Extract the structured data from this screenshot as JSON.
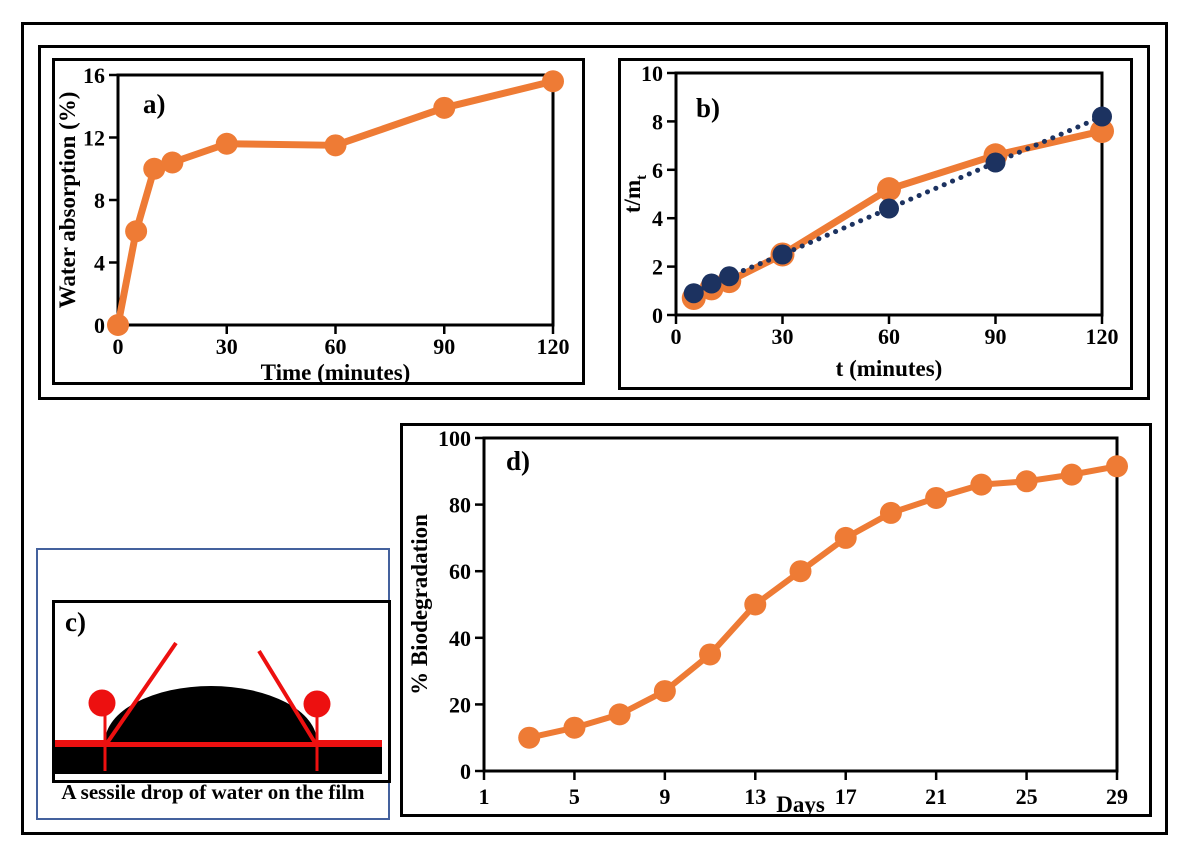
{
  "colors": {
    "orange": "#EE7B35",
    "navy": "#1C3260",
    "red": "#ED1010",
    "black": "#000000",
    "panel_c_border": "#44619D",
    "background": "#FFFFFF"
  },
  "panel_c": {
    "label": "c)",
    "caption": "A sessile drop of water on the film"
  },
  "chart_data": [
    {
      "id": "a",
      "type": "line",
      "panel_label": "a)",
      "title": "",
      "xlabel": "Time (minutes)",
      "ylabel": "Water absorption (%)",
      "xlim": [
        0,
        120
      ],
      "ylim": [
        0,
        16
      ],
      "xticks": [
        0,
        30,
        60,
        90,
        120
      ],
      "yticks": [
        0,
        4,
        8,
        12,
        16
      ],
      "grid": false,
      "legend": "none",
      "x": [
        0,
        5,
        10,
        15,
        30,
        60,
        90,
        120
      ],
      "series": [
        {
          "name": "water-absorption",
          "color": "orange",
          "line": "solid",
          "marker": "circle",
          "values": [
            0,
            6,
            10,
            10.4,
            11.6,
            11.5,
            13.9,
            15.6
          ]
        }
      ]
    },
    {
      "id": "b",
      "type": "line",
      "panel_label": "b)",
      "title": "",
      "xlabel": "t (minutes)",
      "ylabel": "t/m",
      "ylabel_sub": "t",
      "xlim": [
        0,
        120
      ],
      "ylim": [
        0,
        10
      ],
      "xticks": [
        0,
        30,
        60,
        90,
        120
      ],
      "yticks": [
        0,
        2,
        4,
        6,
        8,
        10
      ],
      "grid": false,
      "legend": "none",
      "x": [
        5,
        10,
        15,
        30,
        60,
        90,
        120
      ],
      "series": [
        {
          "name": "experimental",
          "color": "orange",
          "line": "solid",
          "marker": "circle",
          "values": [
            0.7,
            1.1,
            1.4,
            2.5,
            5.2,
            6.6,
            7.6
          ]
        },
        {
          "name": "pseudo-second-order-fit",
          "color": "navy",
          "line": "dotted",
          "marker": "circle",
          "values": [
            0.9,
            1.3,
            1.6,
            2.5,
            4.4,
            6.3,
            8.2
          ]
        }
      ]
    },
    {
      "id": "d",
      "type": "line",
      "panel_label": "d)",
      "title": "",
      "xlabel": "Days",
      "ylabel": "% Biodegradation",
      "xlim": [
        1,
        29
      ],
      "ylim": [
        0,
        100
      ],
      "xticks": [
        1,
        5,
        9,
        13,
        17,
        21,
        25,
        29
      ],
      "yticks": [
        0,
        20,
        40,
        60,
        80,
        100
      ],
      "grid": false,
      "legend": "none",
      "x": [
        3,
        5,
        7,
        9,
        11,
        13,
        15,
        17,
        19,
        21,
        23,
        25,
        27,
        29
      ],
      "series": [
        {
          "name": "biodegradation",
          "color": "orange",
          "line": "solid",
          "marker": "circle",
          "values": [
            10,
            13,
            17,
            24,
            35,
            50,
            60,
            70,
            77.5,
            82,
            86,
            87,
            89,
            91.5
          ]
        }
      ]
    }
  ]
}
